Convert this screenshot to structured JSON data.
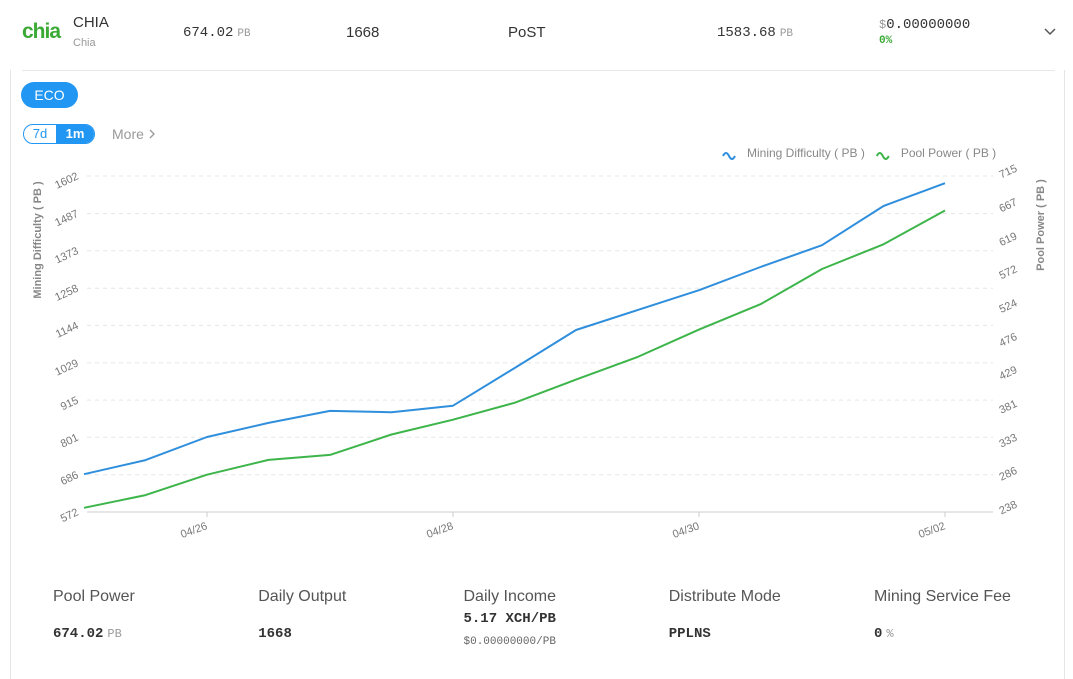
{
  "header": {
    "logo": "chia",
    "name": "CHIA",
    "subname": "Chia",
    "pool_power": "674.02",
    "pool_power_unit": "PB",
    "daily_output": "1668",
    "algorithm": "PoST",
    "difficulty": "1583.68",
    "difficulty_unit": "PB",
    "currency": "$",
    "price": "0.00000000",
    "change": "0%"
  },
  "tabs": {
    "category": "ECO",
    "periods": [
      "7d",
      "1m"
    ],
    "more": "More"
  },
  "chart_data": {
    "type": "line",
    "categories": [
      null,
      null,
      "04/26",
      null,
      null,
      null,
      "04/28",
      null,
      null,
      null,
      "04/30",
      null,
      null,
      null,
      "05/02"
    ],
    "series": [
      {
        "name": "Mining Difficulty ( PB )",
        "color": "#2f8fdd",
        "values": [
          688,
          731,
          802,
          845,
          882,
          878,
          898,
          1013,
          1130,
          1191,
          1252,
          1323,
          1390,
          1510,
          1580
        ]
      },
      {
        "name": "Pool Power ( PB )",
        "color": "#3db54a",
        "axis": "y2",
        "values": [
          244,
          262,
          291,
          312,
          319,
          348,
          369,
          393,
          426,
          458,
          497,
          533,
          583,
          618,
          666
        ]
      }
    ],
    "ylabel": "Mining Difficulty ( PB )",
    "y2label": "Pool Power ( PB )",
    "ylim": [
      572,
      1602
    ],
    "yticks": [
      572,
      686,
      801,
      915,
      1029,
      1144,
      1258,
      1373,
      1487,
      1602
    ],
    "y2lim": [
      238,
      715
    ],
    "y2ticks": [
      238,
      286,
      333,
      381,
      429,
      476,
      524,
      572,
      619,
      667,
      715
    ],
    "grid": true,
    "legend": "top-right"
  },
  "stats": [
    {
      "label": "Pool Power",
      "value": "674.02",
      "unit": "PB"
    },
    {
      "label": "Daily Output",
      "value": "1668"
    },
    {
      "label": "Daily Income",
      "value": "5.17 XCH/PB",
      "sub": "$0.00000000/PB"
    },
    {
      "label": "Distribute Mode",
      "value": "PPLNS"
    },
    {
      "label": "Mining Service Fee",
      "value": "0",
      "unit": "%"
    }
  ]
}
